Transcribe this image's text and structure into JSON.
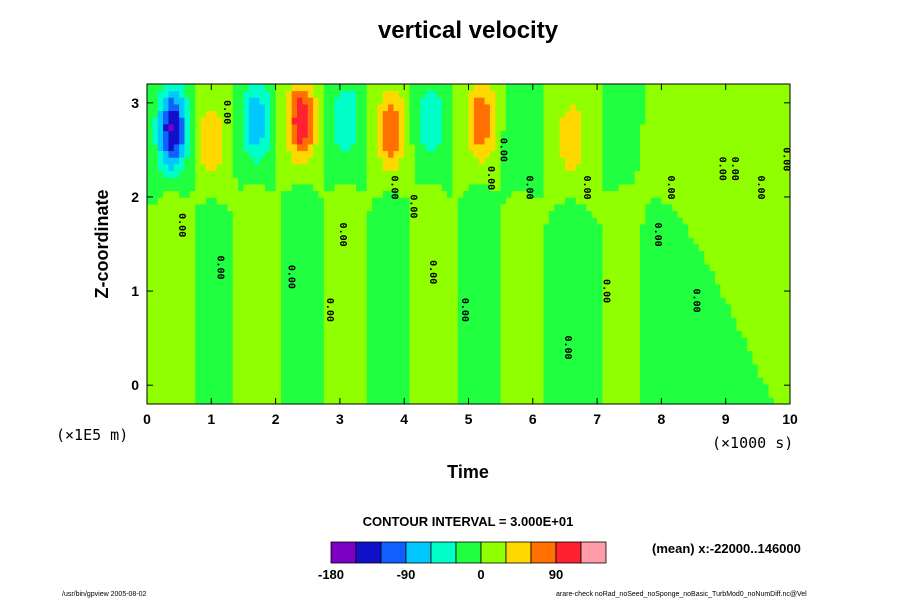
{
  "chart_data": {
    "type": "heatmap",
    "title": "vertical velocity",
    "xlabel": "Time",
    "ylabel": "Z-coordinate",
    "x_unit_note": "(×1000 s)",
    "y_unit_note": "(×1E5 m)",
    "xlim": [
      0,
      10
    ],
    "ylim": [
      -0.2,
      3.2
    ],
    "xticks": [
      "0",
      "1",
      "2",
      "3",
      "4",
      "5",
      "6",
      "7",
      "8",
      "9",
      "10"
    ],
    "yticks": [
      "0",
      "1",
      "2",
      "3"
    ],
    "contour_interval_text": "CONTOUR INTERVAL = 3.000E+01",
    "colorbar": {
      "levels": [
        -180,
        -150,
        -120,
        -90,
        -60,
        -30,
        0,
        30,
        60,
        90,
        120
      ],
      "tick_labels": [
        "-180",
        "-90",
        "0",
        "90"
      ],
      "colors": [
        "#7b00c4",
        "#1010c8",
        "#1060ff",
        "#00c8ff",
        "#00ffc8",
        "#20ff40",
        "#90ff00",
        "#ffd800",
        "#ff7000",
        "#ff2030",
        "#ff9ca8"
      ]
    },
    "contour_label": "0.00",
    "mean_note": "(mean) x:-22000..146000",
    "features": [
      {
        "t": 0.4,
        "z": 2.7,
        "value": -160
      },
      {
        "t": 1.0,
        "z": 2.6,
        "value": 60
      },
      {
        "t": 1.7,
        "z": 2.8,
        "value": -90
      },
      {
        "t": 2.4,
        "z": 2.8,
        "value": 120
      },
      {
        "t": 3.1,
        "z": 2.8,
        "value": -60
      },
      {
        "t": 3.8,
        "z": 2.7,
        "value": 90
      },
      {
        "t": 4.4,
        "z": 2.8,
        "value": -60
      },
      {
        "t": 5.2,
        "z": 2.8,
        "value": 90
      },
      {
        "t": 5.8,
        "z": 2.7,
        "value": -30
      },
      {
        "t": 6.6,
        "z": 2.6,
        "value": 60
      },
      {
        "t": 7.5,
        "z": 2.8,
        "value": -30
      },
      {
        "t": 7.9,
        "z": 2.6,
        "value": 30
      }
    ]
  },
  "footer": {
    "left": "/usr/bin/gpview 2005-08-02",
    "right": "arare-check noRad_noSeed_noSponge_noBasic_TurbMod0_noNumDiff.nc@Vel"
  },
  "colors": {
    "background": "#ffffff",
    "axes": "#000000"
  }
}
